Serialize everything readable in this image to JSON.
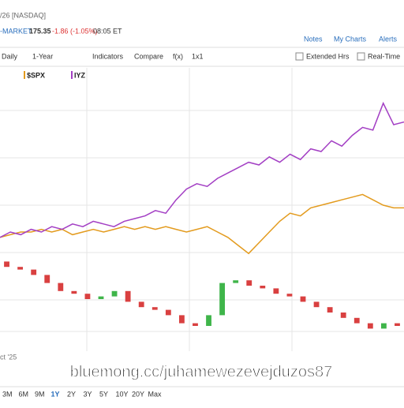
{
  "header": {
    "exchange": "/26 [NASDAQ]",
    "market": "-MARKET",
    "price": "175.35",
    "change": "-1.86 (-1.05%)",
    "time": "08:05 ET",
    "links": [
      "Notes",
      "My Charts",
      "Alerts"
    ]
  },
  "toolbar": {
    "items": [
      "Daily",
      "1-Year",
      "Indicators",
      "Compare",
      "f(x)",
      "1x1"
    ],
    "checkboxes": [
      "Extended Hrs",
      "Real-Time"
    ]
  },
  "x_label": "ct '25",
  "watermark": "bluemong.cc/juhamewezevejduzos87",
  "ranges": [
    "3M",
    "6M",
    "9M",
    "1Y",
    "2Y",
    "3Y",
    "5Y",
    "10Y",
    "20Y",
    "Max"
  ],
  "chart_data": [
    {
      "type": "line",
      "ylim": [
        0,
        100
      ],
      "series": [
        {
          "name": "$SPX",
          "color": "#e39b1e",
          "values": [
            38,
            39,
            40,
            40,
            41,
            40,
            41,
            39,
            40,
            41,
            40,
            41,
            42,
            41,
            42,
            41,
            42,
            41,
            40,
            41,
            42,
            40,
            38,
            35,
            32,
            36,
            40,
            44,
            47,
            46,
            49,
            50,
            51,
            52,
            53,
            54,
            52,
            50,
            49,
            49
          ]
        },
        {
          "name": "IYZ",
          "color": "#a33fc4",
          "values": [
            38,
            40,
            39,
            41,
            40,
            42,
            41,
            43,
            42,
            44,
            43,
            42,
            44,
            45,
            46,
            48,
            47,
            52,
            56,
            58,
            57,
            60,
            62,
            64,
            66,
            65,
            68,
            66,
            69,
            67,
            71,
            70,
            74,
            72,
            76,
            79,
            78,
            88,
            80,
            81
          ]
        }
      ]
    },
    {
      "type": "candlestick",
      "ylim": [
        0,
        100
      ],
      "up_color": "#3fb54a",
      "down_color": "#d94040",
      "open": [
        29,
        27,
        26,
        24,
        21,
        18,
        17,
        15,
        16,
        18,
        14,
        12,
        11,
        9,
        6,
        5,
        9,
        21,
        22,
        20,
        19,
        17,
        16,
        14,
        12,
        10,
        8,
        6,
        4,
        6
      ],
      "close": [
        27,
        26,
        24,
        21,
        18,
        17,
        15,
        16,
        18,
        14,
        12,
        11,
        9,
        6,
        5,
        9,
        21,
        22,
        20,
        19,
        17,
        16,
        14,
        12,
        10,
        8,
        6,
        4,
        6,
        5
      ]
    }
  ]
}
